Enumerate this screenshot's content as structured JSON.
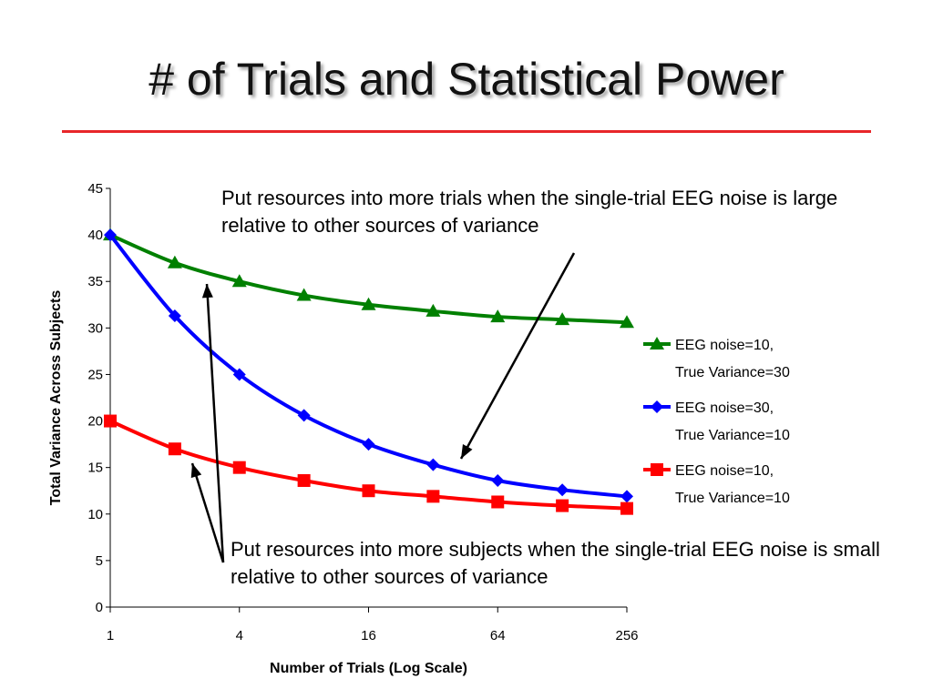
{
  "slide": {
    "title": "# of Trials and Statistical Power",
    "callout_top": "Put resources into more trials when the single-trial EEG noise is large relative to other sources of variance",
    "callout_bottom": "Put resources into more subjects when the single-trial EEG noise is small relative to other sources of variance"
  },
  "chart_data": {
    "type": "line",
    "xscale": "log2",
    "x": [
      1,
      2,
      4,
      8,
      16,
      32,
      64,
      128,
      256
    ],
    "x_ticks": [
      1,
      4,
      16,
      64,
      256
    ],
    "x_tick_labels": [
      "1",
      "4",
      "16",
      "64",
      "256"
    ],
    "ylim": [
      0,
      45
    ],
    "y_ticks": [
      0,
      5,
      10,
      15,
      20,
      25,
      30,
      35,
      40,
      45
    ],
    "y_tick_labels": [
      "0",
      "5",
      "10",
      "15",
      "20",
      "25",
      "30",
      "35",
      "40",
      "45"
    ],
    "xlabel": "Number of Trials (Log Scale)",
    "ylabel": "Total Variance Across Subjects",
    "grid": false,
    "legend_position": "right",
    "series": [
      {
        "name_lines": [
          "EEG noise=10,",
          "True Variance=30"
        ],
        "color": "#008000",
        "marker": "triangle",
        "values": [
          40,
          37,
          35,
          33.5,
          32.5,
          31.8,
          31.2,
          30.9,
          30.6
        ]
      },
      {
        "name_lines": [
          "EEG noise=30,",
          "True Variance=10"
        ],
        "color": "#0000ff",
        "marker": "diamond",
        "values": [
          40,
          31.3,
          25,
          20.6,
          17.5,
          15.3,
          13.6,
          12.6,
          11.9
        ]
      },
      {
        "name_lines": [
          "EEG noise=10,",
          "True Variance=10"
        ],
        "color": "#ff0000",
        "marker": "square",
        "values": [
          20,
          17,
          15,
          13.6,
          12.5,
          11.9,
          11.3,
          10.9,
          10.6
        ]
      }
    ],
    "arrow_color": "#000000"
  }
}
